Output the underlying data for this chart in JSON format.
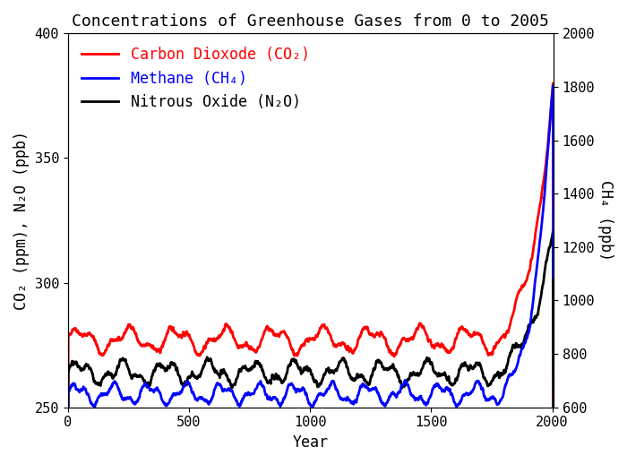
{
  "title": "Concentrations of Greenhouse Gases from 0 to 2005",
  "xlabel": "Year",
  "ylabel_left": "CO₂ (ppm), N₂O (ppb)",
  "ylabel_right": "CH₄ (ppb)",
  "xlim": [
    0,
    2005
  ],
  "ylim_left": [
    250,
    400
  ],
  "ylim_right": [
    600,
    2000
  ],
  "yticks_left": [
    250,
    300,
    350,
    400
  ],
  "yticks_right": [
    600,
    800,
    1000,
    1200,
    1400,
    1600,
    1800,
    2000
  ],
  "xticks": [
    0,
    500,
    1000,
    1500,
    2000
  ],
  "legend": [
    {
      "label": "Carbon Dioxode (CO₂)",
      "color": "#ff0000"
    },
    {
      "label": "Methane (CH₄)",
      "color": "#0000ff"
    },
    {
      "label": "Nitrous Oxide (N₂O)",
      "color": "#000000"
    }
  ],
  "line_width": 2.0,
  "title_fontsize": 13,
  "label_fontsize": 12,
  "tick_fontsize": 11,
  "legend_fontsize": 12,
  "bg_color": "#ffffff",
  "font_family": "monospace"
}
